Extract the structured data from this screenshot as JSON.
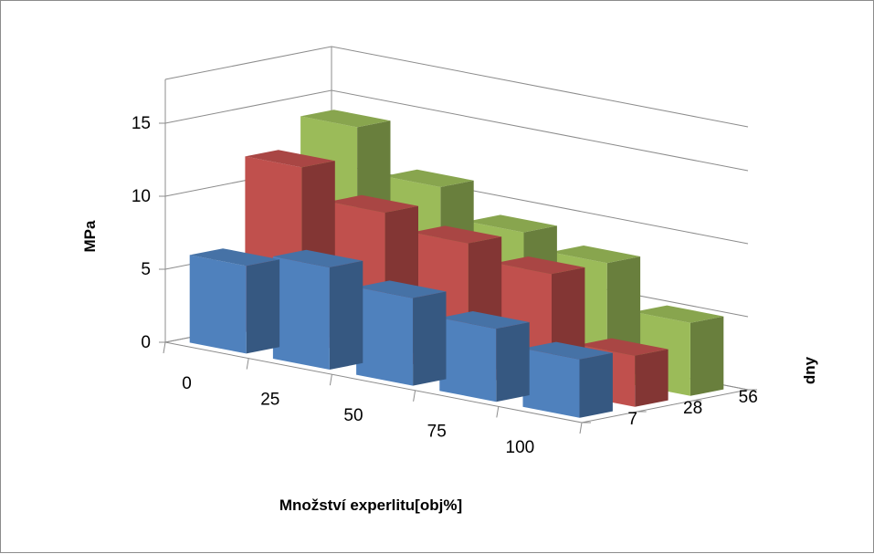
{
  "chart_data": {
    "type": "bar",
    "subtype": "3d-column",
    "title": "",
    "xlabel": "Množství experlitu[obj%]",
    "ylabel": "MPa",
    "zlabel": "dny",
    "categories": [
      "0",
      "25",
      "50",
      "75",
      "100"
    ],
    "series": [
      {
        "name": "7",
        "color": "#4f81bd",
        "values": [
          6,
          7,
          6,
          5,
          4
        ]
      },
      {
        "name": "28",
        "color": "#c0504d",
        "values": [
          12,
          10,
          9,
          8,
          3.5
        ]
      },
      {
        "name": "56",
        "color": "#9bbb59",
        "values": [
          14,
          11,
          9,
          8,
          5
        ]
      }
    ],
    "y_ticks": [
      "0",
      "5",
      "10",
      "15"
    ],
    "ylim": [
      0,
      18
    ],
    "grid": true,
    "legend": "none"
  }
}
